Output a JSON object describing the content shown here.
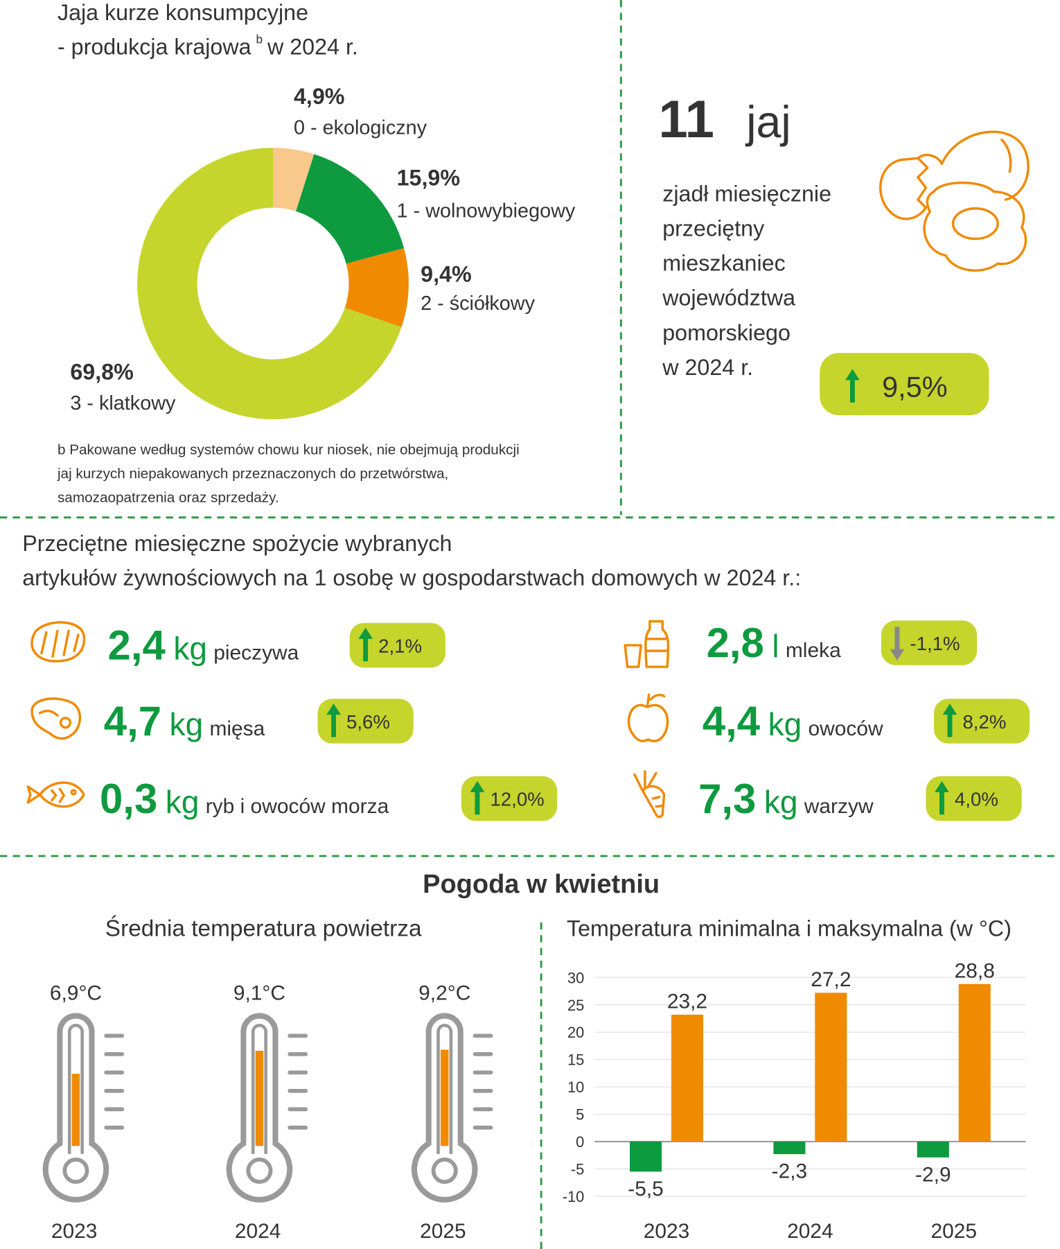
{
  "chart_data": [
    {
      "type": "pie",
      "title": "Jaja kurze konsumpcyjne",
      "subtitle": "- produkcja krajowa",
      "subtitle_note": "b",
      "subtitle_end": "w 2024 r.",
      "categories": [
        "0 - ekologiczny",
        "1 - wolnowybiegowy",
        "2 - ściółkowy",
        "3 - klatkowy"
      ],
      "values": [
        4.9,
        15.9,
        9.4,
        69.8
      ],
      "value_labels": [
        "4,9%",
        "15,9%",
        "9,4%",
        "69,8%"
      ],
      "colors": [
        "#f8c98a",
        "#0e9a3e",
        "#f08a00",
        "#c5d52c"
      ],
      "footnote": [
        "b Pakowane według systemów chowu kur niosek, nie obejmują produkcji",
        "jaj kurzych niepakowanych przeznaczonych do przetwórstwa,",
        "samozaopatrzenia oraz sprzedaży."
      ]
    },
    {
      "type": "bar",
      "title": "Temperatura minimalna i maksymalna (w °C)",
      "categories": [
        "2023",
        "2024",
        "2025"
      ],
      "series": [
        {
          "color": "#0e9a3e",
          "values": [
            -5.5,
            -2.3,
            -2.9
          ],
          "value_labels": [
            "-5,5",
            "-2,3",
            "-2,9"
          ]
        },
        {
          "color": "#f08a00",
          "values": [
            23.2,
            27.2,
            28.8
          ],
          "value_labels": [
            "23,2",
            "27,2",
            "28,8"
          ]
        }
      ],
      "ylim": [
        -10,
        30
      ],
      "yticks": [
        -10,
        -5,
        0,
        5,
        10,
        15,
        20,
        25,
        30
      ],
      "grid": true
    }
  ],
  "eggs": {
    "value": "11",
    "unit": "jaj",
    "description": [
      "zjadł miesięcznie",
      "przeciętny",
      "mieszkaniec",
      "województwa",
      "pomorskiego",
      "w 2024 r."
    ],
    "change": "9,5%"
  },
  "food": {
    "title": [
      "Przeciętne miesięczne spożycie wybranych",
      "artykułów żywnościowych na 1 osobę w gospodarstwach domowych w 2024 r.:"
    ],
    "items": [
      {
        "value": "2,4",
        "unit": "kg",
        "name": "pieczywa",
        "change": "2,1%"
      },
      {
        "value": "4,7",
        "unit": "kg",
        "name": "mięsa",
        "change": "5,6%"
      },
      {
        "value": "0,3",
        "unit": "kg",
        "name": "ryb i owoców morza",
        "change": "12,0%"
      },
      {
        "value": "2,8",
        "unit": "l",
        "name": "mleka",
        "change": "-1,1%"
      },
      {
        "value": "4,4",
        "unit": "kg",
        "name": "owoców",
        "change": "8,2%"
      },
      {
        "value": "7,3",
        "unit": "kg",
        "name": "warzyw",
        "change": "4,0%"
      }
    ]
  },
  "weather": {
    "title": "Pogoda w kwietniu",
    "thermometers": {
      "title": "Średnia temperatura powietrza",
      "years": [
        "2023",
        "2024",
        "2025"
      ],
      "values": [
        6.9,
        9.1,
        9.2
      ],
      "value_labels": [
        "6,9°C",
        "9,1°C",
        "9,2°C"
      ]
    }
  }
}
